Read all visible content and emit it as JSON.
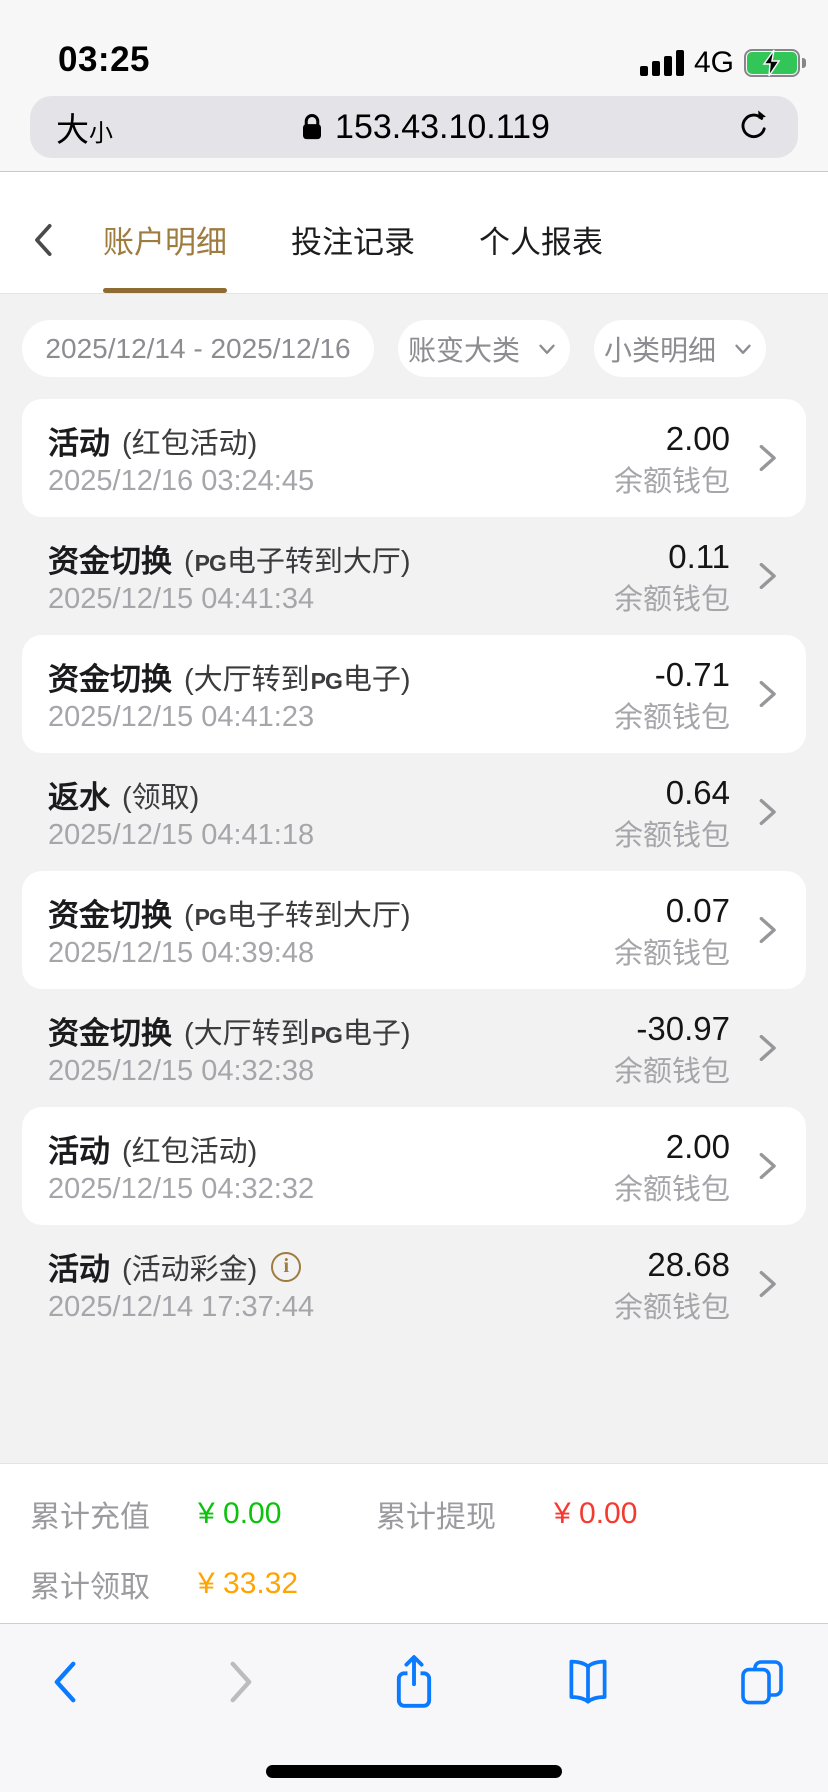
{
  "colors": {
    "accent_brown": "#9E7B3F",
    "positive_green": "#0CC20C",
    "negative_red": "#F5392F",
    "claim_orange": "#FFA400",
    "safari_blue": "#0A7AFF",
    "battery_green": "#32C558"
  },
  "status_bar": {
    "time": "03:25",
    "network": "4G"
  },
  "address_bar": {
    "text_size_big": "大",
    "text_size_small": "小",
    "url": "153.43.10.119"
  },
  "nav_tabs": {
    "tabs": [
      {
        "label": "账户明细",
        "active": true
      },
      {
        "label": "投注记录",
        "active": false
      },
      {
        "label": "个人报表",
        "active": false
      }
    ]
  },
  "filters": {
    "date_range": "2025/12/14 - 2025/12/16",
    "category_dropdown": "账变大类",
    "subcategory_dropdown": "小类明细"
  },
  "transactions": [
    {
      "type": "活动",
      "detail": "(红包活动)",
      "amount": "2.00",
      "datetime": "2025/12/16 03:24:45",
      "wallet": "余额钱包",
      "has_info": false
    },
    {
      "type": "资金切换",
      "detail": "(PG电子转到大厅)",
      "amount": "0.11",
      "datetime": "2025/12/15 04:41:34",
      "wallet": "余额钱包",
      "has_info": false
    },
    {
      "type": "资金切换",
      "detail": "(大厅转到PG电子)",
      "amount": "-0.71",
      "datetime": "2025/12/15 04:41:23",
      "wallet": "余额钱包",
      "has_info": false
    },
    {
      "type": "返水",
      "detail": "(领取)",
      "amount": "0.64",
      "datetime": "2025/12/15 04:41:18",
      "wallet": "余额钱包",
      "has_info": false
    },
    {
      "type": "资金切换",
      "detail": "(PG电子转到大厅)",
      "amount": "0.07",
      "datetime": "2025/12/15 04:39:48",
      "wallet": "余额钱包",
      "has_info": false
    },
    {
      "type": "资金切换",
      "detail": "(大厅转到PG电子)",
      "amount": "-30.97",
      "datetime": "2025/12/15 04:32:38",
      "wallet": "余额钱包",
      "has_info": false
    },
    {
      "type": "活动",
      "detail": "(红包活动)",
      "amount": "2.00",
      "datetime": "2025/12/15 04:32:32",
      "wallet": "余额钱包",
      "has_info": false
    },
    {
      "type": "活动",
      "detail": "(活动彩金)",
      "amount": "28.68",
      "datetime": "2025/12/14 17:37:44",
      "wallet": "余额钱包",
      "has_info": true
    }
  ],
  "info_badge_glyph": "i",
  "summary": {
    "deposit_label": "累计充值",
    "deposit_value": "¥ 0.00",
    "withdraw_label": "累计提现",
    "withdraw_value": "¥ 0.00",
    "claim_label": "累计领取",
    "claim_value": "¥ 33.32"
  },
  "icons": {
    "signal": "signal-bars-icon",
    "battery": "battery-charging-icon",
    "lock": "lock-icon",
    "reload": "reload-icon",
    "back": "chevron-left-icon",
    "row_chevron": "chevron-right-icon",
    "dropdown": "chevron-down-icon",
    "share": "share-icon",
    "bookmarks": "book-icon",
    "tabs": "tabs-icon"
  }
}
